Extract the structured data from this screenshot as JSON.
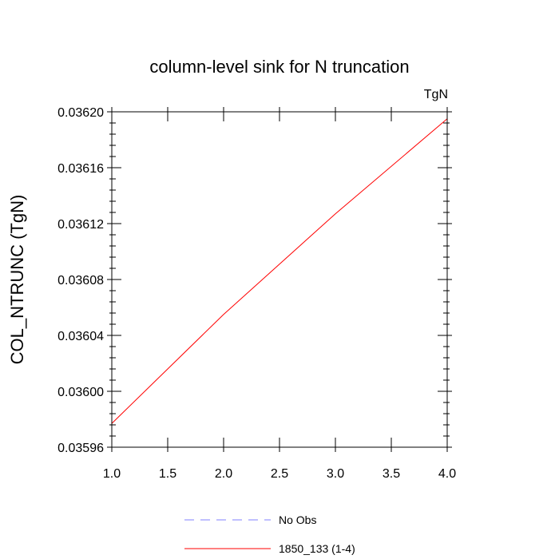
{
  "chart_data": {
    "type": "line",
    "title": "column-level sink for N truncation",
    "units_label": "TgN",
    "ylabel": "COL_NTRUNC  (TgN)",
    "xlabel": "",
    "xlim": [
      1.0,
      4.0
    ],
    "ylim": [
      0.03596,
      0.0362
    ],
    "x_ticks": [
      "1.0",
      "1.5",
      "2.0",
      "2.5",
      "3.0",
      "3.5",
      "4.0"
    ],
    "y_ticks": [
      "0.03596",
      "0.03600",
      "0.03604",
      "0.03608",
      "0.03612",
      "0.03616",
      "0.03620"
    ],
    "grid": false,
    "legend_position": "bottom",
    "series": [
      {
        "name": "No Obs",
        "color": "#8080ff",
        "dash": "dashed",
        "x": [],
        "y": []
      },
      {
        "name": "1850_133 (1-4)",
        "color": "#ff0000",
        "dash": "solid",
        "x": [
          1.0,
          2.0,
          3.0,
          4.0
        ],
        "y": [
          0.035977,
          0.036055,
          0.036127,
          0.036195
        ]
      }
    ]
  }
}
